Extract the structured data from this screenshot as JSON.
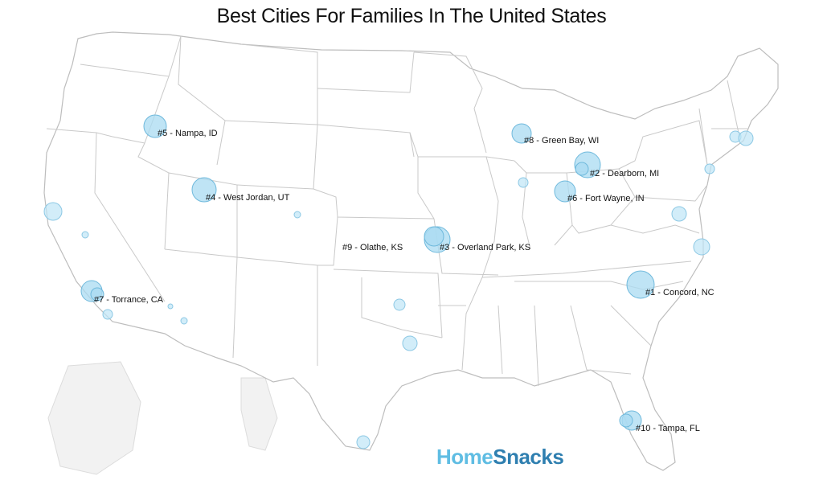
{
  "title": "Best Cities For Families In The United States",
  "logo": {
    "part1": "Home",
    "part2": "Snacks"
  },
  "colors": {
    "bubble_fill": "#a9dbf1",
    "bubble_stroke": "#6fb9dc",
    "state_stroke": "#c9c9c9",
    "logo_light": "#5fbde3",
    "logo_dark": "#2f7fb0"
  },
  "cities": [
    {
      "rank": "#1",
      "label": "#1 - Concord, NC"
    },
    {
      "rank": "#2",
      "label": "#2 - Dearborn, MI"
    },
    {
      "rank": "#3",
      "label": "#3 - Overland Park, KS"
    },
    {
      "rank": "#4",
      "label": "#4 - West Jordan, UT"
    },
    {
      "rank": "#5",
      "label": "#5 - Nampa, ID"
    },
    {
      "rank": "#6",
      "label": "#6 - Fort Wayne, IN"
    },
    {
      "rank": "#7",
      "label": "#7 - Torrance, CA"
    },
    {
      "rank": "#8",
      "label": "#8 - Green Bay, WI"
    },
    {
      "rank": "#9",
      "label": "#9 - Olathe, KS"
    },
    {
      "rank": "#10",
      "label": "#10 - Tampa, FL"
    }
  ]
}
